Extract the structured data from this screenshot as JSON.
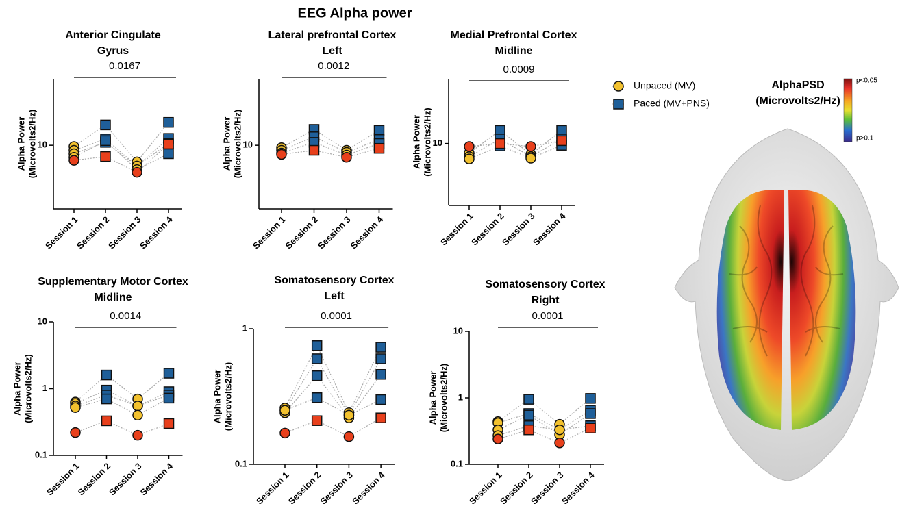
{
  "title": "EEG Alpha power",
  "legend": [
    {
      "name": "Unpaced (MV)",
      "color": "#f2c12e",
      "marker": "circle"
    },
    {
      "name": "Paced (MV+PNS)",
      "color": "#1f5f99",
      "marker": "square"
    }
  ],
  "colorbar": {
    "title": [
      "AlphaPSD",
      "(Microvolts2/Hz)"
    ],
    "top_label": "p<0.05",
    "bottom_label": "p>0.1"
  },
  "chart_data": [
    {
      "type": "scatter",
      "title": [
        "Anterior Cingulate",
        "Gyrus"
      ],
      "p_value": 0.0167,
      "categories": [
        "Session 1",
        "Session 2",
        "Session 3",
        "Session 4"
      ],
      "condition": [
        0,
        1,
        0,
        1
      ],
      "ylabel": [
        "Alpha Power",
        "(Microvolts2/Hz)"
      ],
      "log_scale": true,
      "ylim": [
        3.5,
        30
      ],
      "yticks": [
        10
      ],
      "series": [
        {
          "values": [
            9.8,
            14.0,
            7.6,
            14.6
          ]
        },
        {
          "values": [
            9.2,
            11.1,
            7.1,
            11.2
          ]
        },
        {
          "values": [
            8.7,
            10.5,
            7.1,
            10.3
          ]
        },
        {
          "values": [
            8.2,
            10.8,
            6.7,
            8.7
          ]
        },
        {
          "values": [
            7.8,
            8.3,
            6.4,
            10.2
          ],
          "color": "#e8401c"
        }
      ]
    },
    {
      "type": "scatter",
      "title": [
        "Lateral prefrontal Cortex",
        "Left"
      ],
      "p_value": 0.0012,
      "categories": [
        "Session 1",
        "Session 2",
        "Session 3",
        "Session 4"
      ],
      "condition": [
        0,
        1,
        0,
        1
      ],
      "ylabel": [
        "Alpha Power",
        "(Microvolts2/Hz)"
      ],
      "log_scale": true,
      "ylim": [
        3.5,
        30
      ],
      "yticks": [
        10
      ],
      "series": [
        {
          "values": [
            9.6,
            13.0,
            9.2,
            12.8
          ]
        },
        {
          "values": [
            9.2,
            11.5,
            8.9,
            11.0
          ]
        },
        {
          "values": [
            8.8,
            10.5,
            8.5,
            10.3
          ]
        },
        {
          "values": [
            8.6,
            9.2,
            8.2,
            9.5
          ],
          "color": "#e8401c"
        }
      ]
    },
    {
      "type": "scatter",
      "title": [
        "Medial Prefrontal Cortex",
        "Midline"
      ],
      "p_value": 0.0009,
      "categories": [
        "Session 1",
        "Session 2",
        "Session 3",
        "Session 4"
      ],
      "condition": [
        0,
        1,
        0,
        1
      ],
      "ylabel": [
        "Alpha Power",
        "(Microvolts2/Hz)"
      ],
      "log_scale": true,
      "ylim": [
        3.5,
        30
      ],
      "yticks": [
        10
      ],
      "series": [
        {
          "values": [
            8.5,
            12.5,
            8.3,
            12.5
          ]
        },
        {
          "values": [
            8.0,
            10.8,
            8.0,
            10.8
          ]
        },
        {
          "values": [
            7.7,
            9.6,
            7.8,
            9.7
          ]
        },
        {
          "values": [
            9.5,
            10.0,
            9.5,
            10.5
          ],
          "color": "#e8401c"
        }
      ]
    },
    {
      "type": "scatter",
      "title": [
        "Supplementary Motor Cortex",
        "Midline"
      ],
      "p_value": 0.0014,
      "categories": [
        "Session 1",
        "Session 2",
        "Session 3",
        "Session 4"
      ],
      "condition": [
        0,
        1,
        0,
        1
      ],
      "ylabel": [
        "Alpha Power",
        "(Microvolts2/Hz)"
      ],
      "log_scale": true,
      "ylim": [
        0.1,
        10
      ],
      "yticks": [
        0.1,
        1,
        10
      ],
      "series": [
        {
          "values": [
            0.63,
            1.6,
            0.7,
            1.7
          ]
        },
        {
          "values": [
            0.6,
            0.95,
            0.55,
            0.9
          ]
        },
        {
          "values": [
            0.55,
            0.8,
            0.55,
            0.8
          ]
        },
        {
          "values": [
            0.52,
            0.7,
            0.4,
            0.72
          ]
        },
        {
          "values": [
            0.22,
            0.33,
            0.2,
            0.3
          ],
          "color": "#e8401c"
        }
      ]
    },
    {
      "type": "scatter",
      "title": [
        "Somatosensory Cortex",
        "Left"
      ],
      "p_value": 0.0001,
      "categories": [
        "Session 1",
        "Session 2",
        "Session 3",
        "Session 4"
      ],
      "condition": [
        0,
        1,
        0,
        1
      ],
      "ylabel": [
        "Alpha Power",
        "(Microvolts2/Hz)"
      ],
      "log_scale": true,
      "ylim": [
        0.1,
        1
      ],
      "yticks": [
        0.1,
        1
      ],
      "series": [
        {
          "values": [
            0.26,
            0.75,
            0.24,
            0.73
          ]
        },
        {
          "values": [
            0.25,
            0.6,
            0.23,
            0.6
          ]
        },
        {
          "values": [
            0.24,
            0.45,
            0.22,
            0.46
          ]
        },
        {
          "values": [
            0.25,
            0.31,
            0.23,
            0.3
          ]
        },
        {
          "values": [
            0.17,
            0.21,
            0.16,
            0.22
          ],
          "color": "#e8401c"
        }
      ]
    },
    {
      "type": "scatter",
      "title": [
        "Somatosensory Cortex",
        "Right"
      ],
      "p_value": 0.0001,
      "categories": [
        "Session 1",
        "Session 2",
        "Session 3",
        "Session 4"
      ],
      "condition": [
        0,
        1,
        0,
        1
      ],
      "ylabel": [
        "Alpha Power",
        "(Microvolts2/Hz)"
      ],
      "log_scale": true,
      "ylim": [
        0.1,
        10
      ],
      "yticks": [
        0.1,
        1,
        10
      ],
      "series": [
        {
          "values": [
            0.44,
            0.95,
            0.4,
            0.98
          ]
        },
        {
          "values": [
            0.42,
            0.58,
            0.33,
            0.65
          ]
        },
        {
          "values": [
            0.33,
            0.55,
            0.28,
            0.58
          ]
        },
        {
          "values": [
            0.27,
            0.38,
            0.33,
            0.38
          ]
        },
        {
          "values": [
            0.24,
            0.33,
            0.21,
            0.35
          ],
          "color": "#e8401c"
        }
      ]
    }
  ]
}
